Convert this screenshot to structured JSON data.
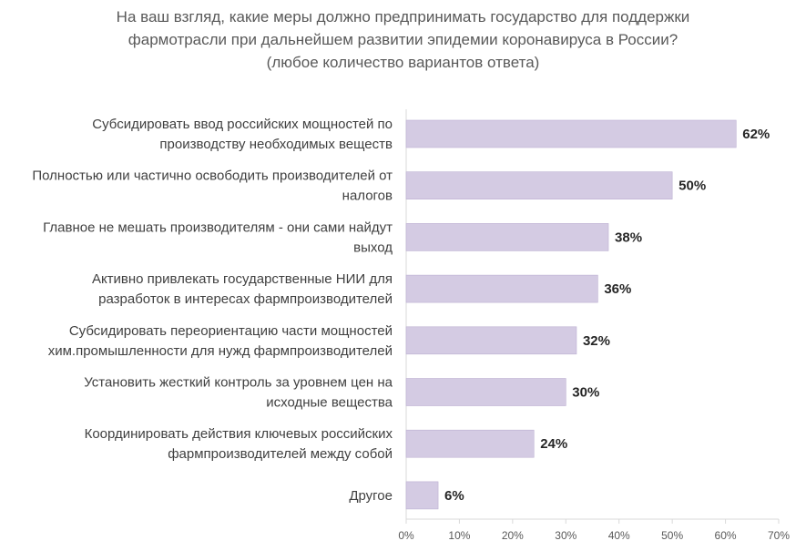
{
  "chart_data": {
    "type": "bar",
    "orientation": "horizontal",
    "title": [
      "На ваш взгляд, какие меры должно предпринимать государство для поддержки",
      "фармотрасли при дальнейшем развитии эпидемии коронавируса в России?",
      "(любое количество вариантов ответа)"
    ],
    "categories": [
      [
        "Субсидировать ввод российских мощностей по",
        "производству необходимых веществ"
      ],
      [
        "Полностью или частично освободить производителей от",
        "налогов"
      ],
      [
        "Главное не мешать производителям - они сами найдут",
        "выход"
      ],
      [
        "Активно привлекать государственные НИИ для",
        "разработок в интересах фармпроизводителей"
      ],
      [
        "Субсидировать переориентацию части мощностей",
        "хим.промышленности для нужд фармпроизводителей"
      ],
      [
        "Установить жесткий контроль за уровнем цен на",
        "исходные вещества"
      ],
      [
        "Координировать действия ключевых российских",
        "фармпроизводителей между собой"
      ],
      [
        "Другое"
      ]
    ],
    "values": [
      62,
      50,
      38,
      36,
      32,
      30,
      24,
      6
    ],
    "value_labels": [
      "62%",
      "50%",
      "38%",
      "36%",
      "32%",
      "30%",
      "24%",
      "6%"
    ],
    "xlim": [
      0,
      70
    ],
    "xticks": [
      0,
      10,
      20,
      30,
      40,
      50,
      60,
      70
    ],
    "xtick_labels": [
      "0%",
      "10%",
      "20%",
      "30%",
      "40%",
      "50%",
      "60%",
      "70%"
    ],
    "xlabel": "",
    "ylabel": "",
    "grid": false,
    "legend": "none",
    "colors": {
      "bar": "#d4cbe3",
      "bar_border": "#bcb0d2",
      "axis": "#d9d9d9"
    }
  }
}
